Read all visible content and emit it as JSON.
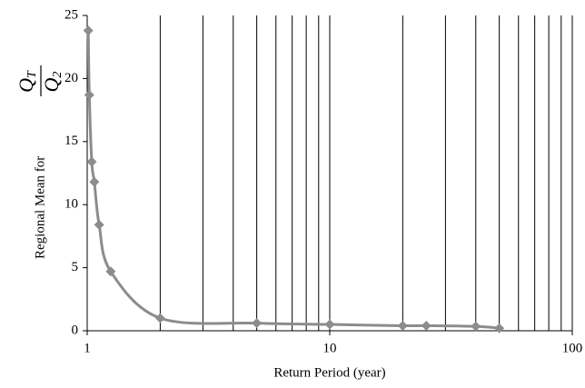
{
  "chart_data": {
    "type": "line",
    "xlabel": "Return Period (year)",
    "ylabel": "Regional Mean for",
    "ylabel_fraction": {
      "numerator": {
        "base": "Q",
        "sub": "T"
      },
      "denominator": {
        "base": "Q",
        "sub": "2"
      }
    },
    "x": [
      1.01,
      1.02,
      1.044,
      1.07,
      1.12,
      1.25,
      2,
      5,
      10,
      20,
      25,
      40,
      50
    ],
    "series": [
      {
        "color": "#8c8c8c",
        "values": [
          23.8,
          18.7,
          13.4,
          11.8,
          8.4,
          4.7,
          1.0,
          0.6,
          0.5,
          0.4,
          0.4,
          0.35,
          0.2
        ]
      }
    ],
    "xscale": "log",
    "xlim": [
      1,
      100
    ],
    "xticks": [
      1,
      10,
      100
    ],
    "xminor": [
      2,
      3,
      4,
      5,
      6,
      7,
      8,
      9,
      20,
      30,
      40,
      50,
      60,
      70,
      80,
      90
    ],
    "ylim": [
      0,
      25
    ],
    "yticks": [
      0,
      5,
      10,
      15,
      20,
      25
    ],
    "grid": "x"
  }
}
